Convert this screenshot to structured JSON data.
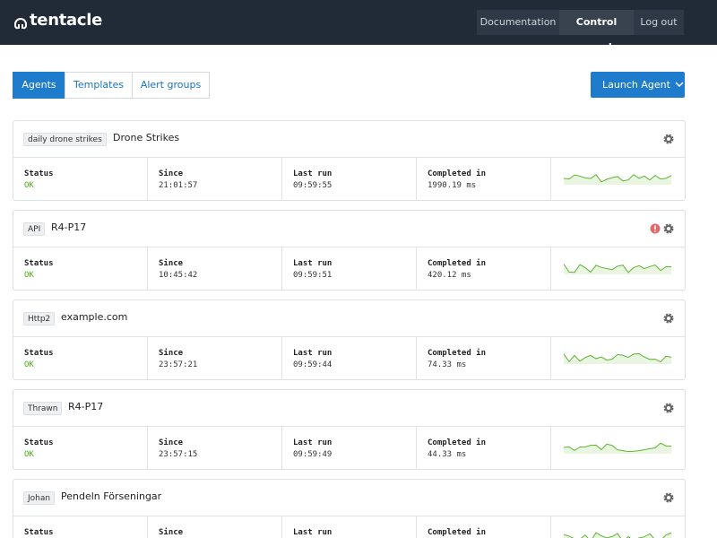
{
  "header": {
    "logo": "tentacle",
    "nav": [
      "Documentation",
      "Control panel",
      "Log out"
    ],
    "active_nav": 1
  },
  "tabs": [
    "Agents",
    "Templates",
    "Alert groups"
  ],
  "active_tab": 0,
  "launch_button": "Launch Agent",
  "agents": [
    {
      "tag": "daily drone strikes",
      "name": "Drone Strikes",
      "alert": false,
      "stats": [
        {
          "label": "Status",
          "value": "OK"
        },
        {
          "label": "Since",
          "value": "21:01:57"
        },
        {
          "label": "Last run",
          "value": "09:59:55"
        },
        {
          "label": "Completed in",
          "value": "1990.19 ms"
        }
      ]
    },
    {
      "tag": "API",
      "name": "R4-P17",
      "alert": true,
      "stats": [
        {
          "label": "Status",
          "value": "OK"
        },
        {
          "label": "Since",
          "value": "10:45:42"
        },
        {
          "label": "Last run",
          "value": "09:59:51"
        },
        {
          "label": "Completed in",
          "value": "420.12 ms"
        }
      ]
    },
    {
      "tag": "Http2",
      "name": "example.com",
      "alert": false,
      "stats": [
        {
          "label": "Status",
          "value": "OK"
        },
        {
          "label": "Since",
          "value": "23:57:21"
        },
        {
          "label": "Last run",
          "value": "09:59:44"
        },
        {
          "label": "Completed in",
          "value": "74.33 ms"
        }
      ]
    },
    {
      "tag": "Thrawn",
      "name": "R4-P17",
      "alert": false,
      "stats": [
        {
          "label": "Status",
          "value": "OK"
        },
        {
          "label": "Since",
          "value": "23:57:15"
        },
        {
          "label": "Last run",
          "value": "09:59:49"
        },
        {
          "label": "Completed in",
          "value": "44.33 ms"
        }
      ]
    },
    {
      "tag": "Johan",
      "name": "Pendeln Förseningar",
      "alert": false,
      "stats": [
        {
          "label": "Status"
        },
        {
          "label": "Since"
        },
        {
          "label": "Last run"
        },
        {
          "label": "Completed in"
        }
      ]
    }
  ]
}
